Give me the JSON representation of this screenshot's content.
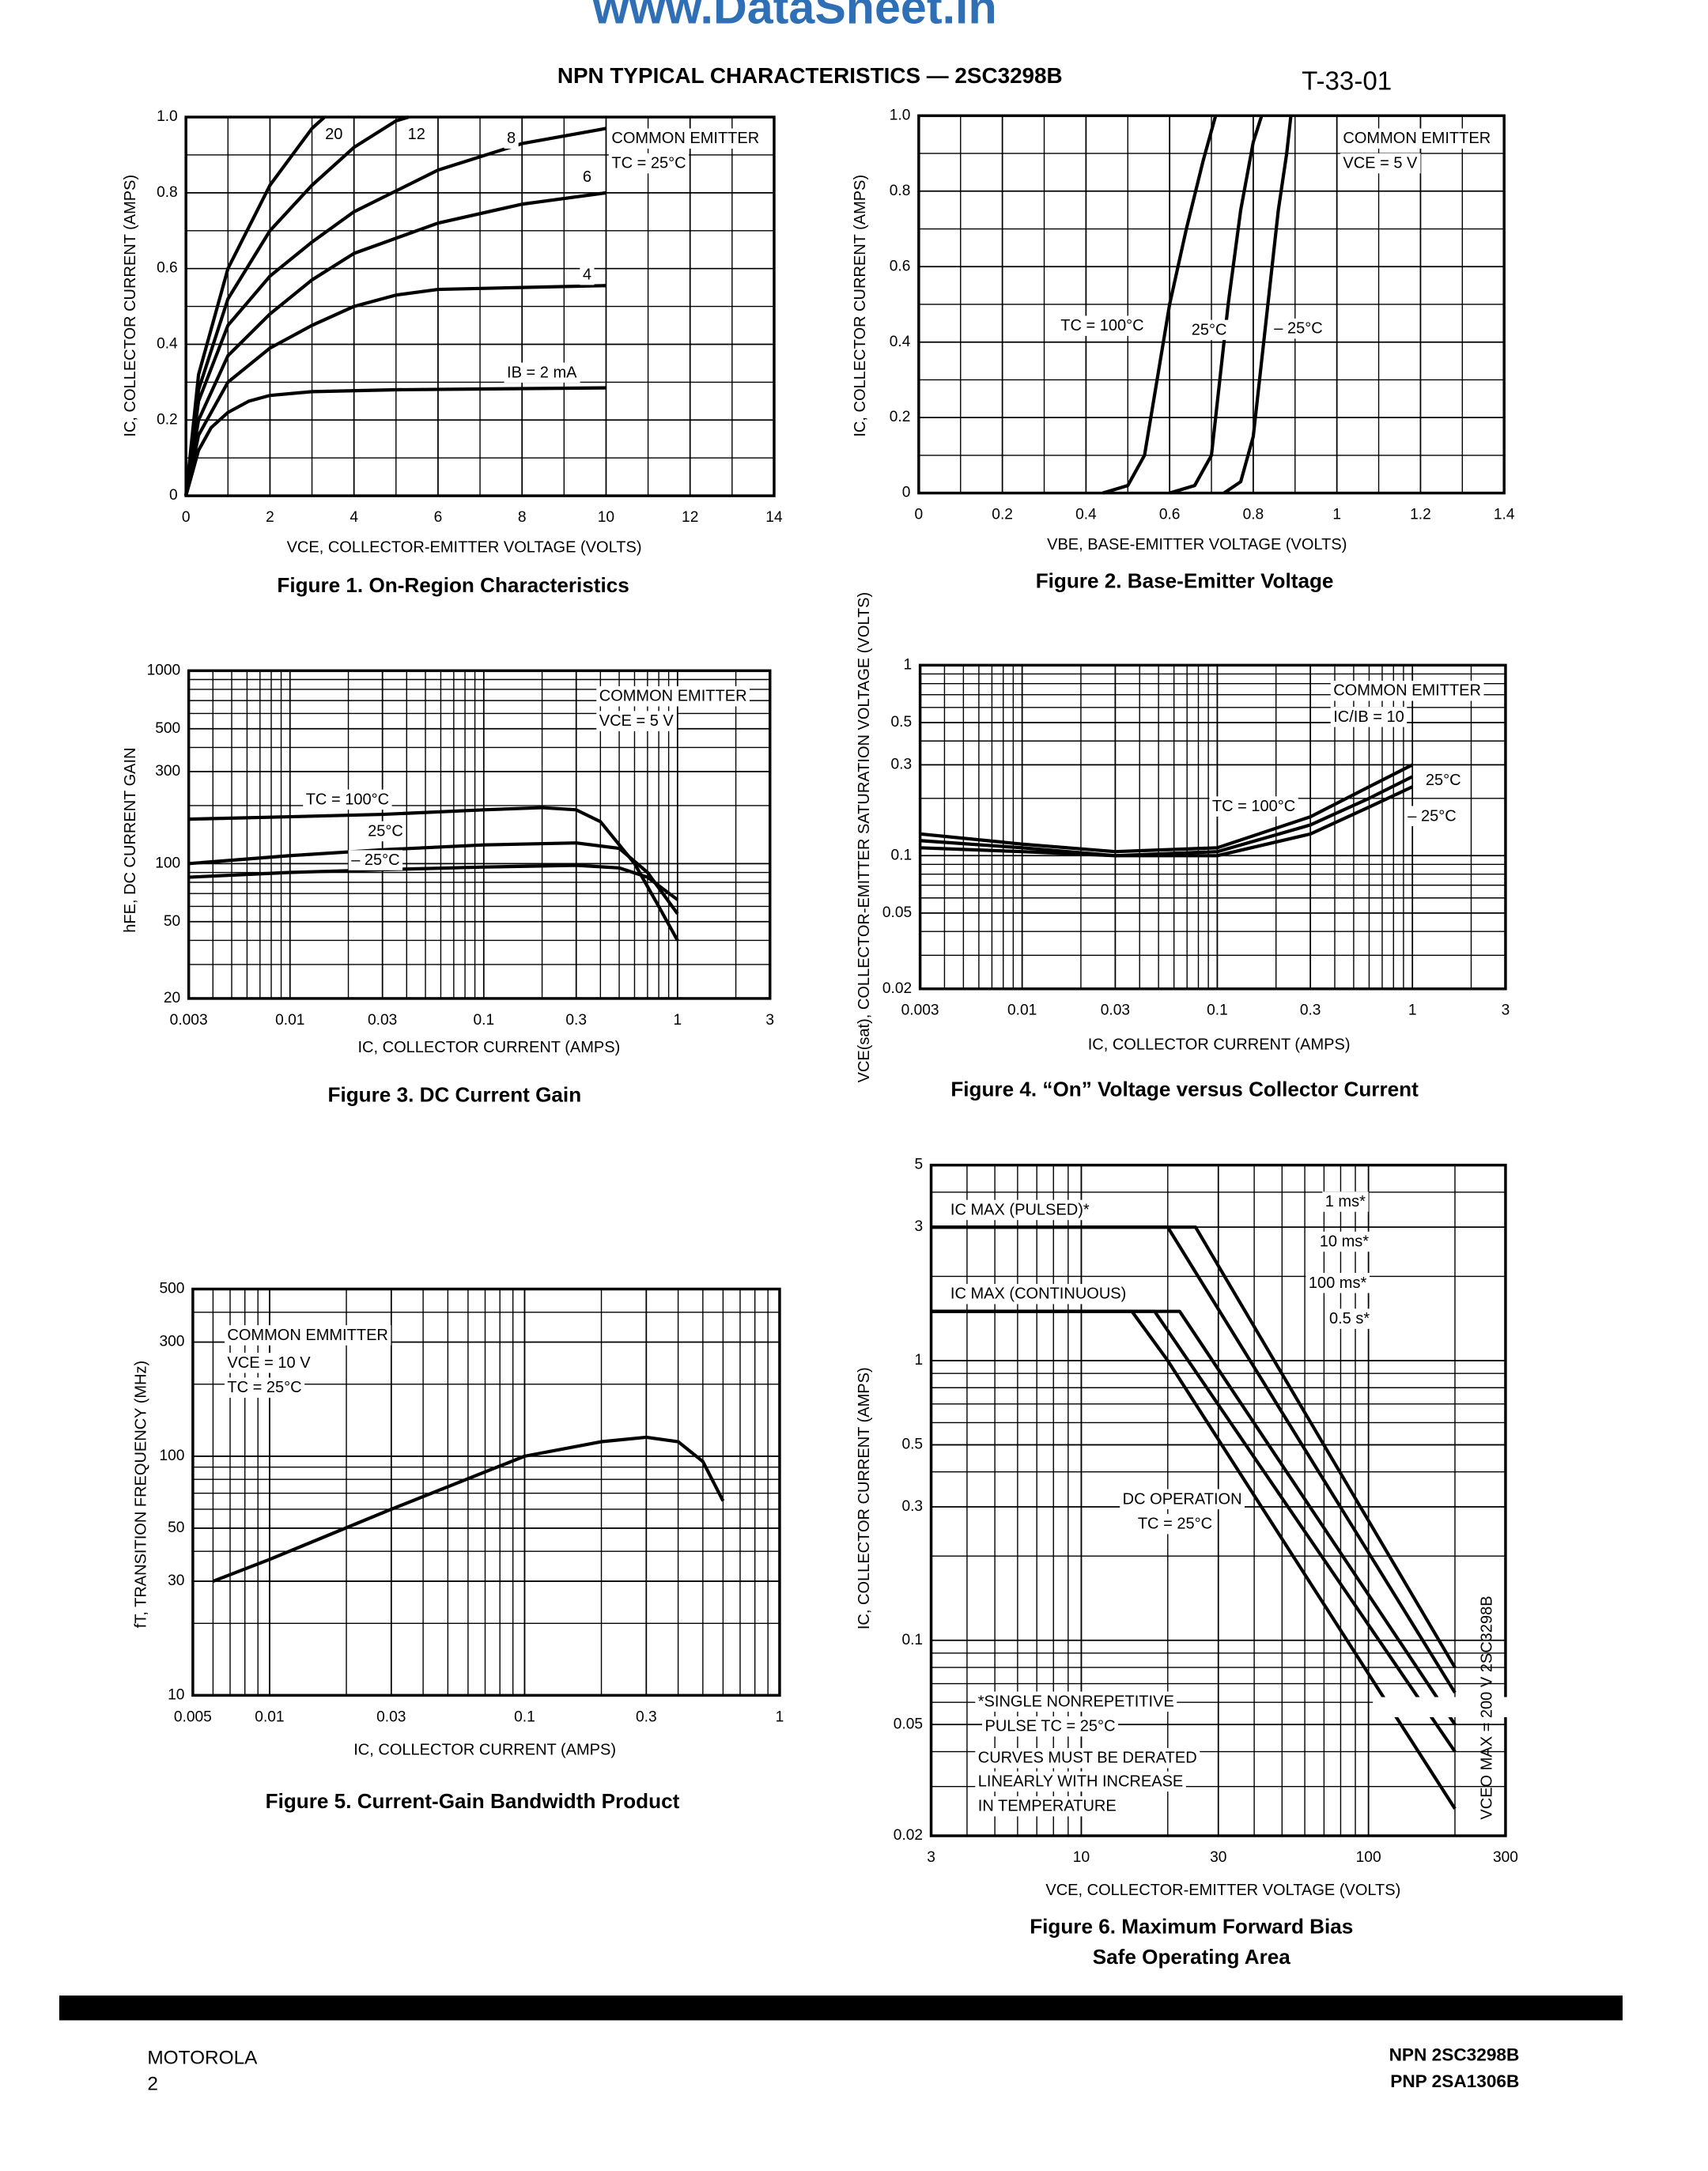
{
  "header": {
    "watermark": "www.DataSheet.in",
    "title": "NPN TYPICAL CHARACTERISTICS — 2SC3298B",
    "code": "T-33-01"
  },
  "footer": {
    "left": [
      "MOTOROLA",
      "2"
    ],
    "right": [
      "NPN 2SC3298B",
      "PNP 2SA1306B"
    ]
  },
  "chart_data": [
    {
      "type": "line",
      "caption": [
        "Figure 1. On-Region Characteristics"
      ],
      "x_label": "VCE, COLLECTOR-EMITTER VOLTAGE (VOLTS)",
      "y_label": "IC, COLLECTOR CURRENT (AMPS)",
      "xscale": "linear",
      "yscale": "linear",
      "xlim": [
        0,
        14
      ],
      "ylim": [
        0,
        1
      ],
      "xticks": [
        0,
        2,
        4,
        6,
        8,
        10,
        12,
        14
      ],
      "yticks": [
        0,
        0.2,
        0.4,
        0.6,
        0.8,
        {
          "value": 1,
          "label": "1.0"
        }
      ],
      "grid": true,
      "minor_grid": true,
      "color": "#000000",
      "annotations": [
        "COMMON EMITTER",
        "TC = 25°C"
      ],
      "series": [
        {
          "name": "20",
          "x": [
            0,
            0.3,
            1,
            2,
            3,
            3.3
          ],
          "values": [
            0,
            0.32,
            0.6,
            0.82,
            0.97,
            1.0
          ]
        },
        {
          "name": "12",
          "x": [
            0,
            0.3,
            1,
            2,
            3,
            4,
            5,
            5.3
          ],
          "values": [
            0,
            0.28,
            0.52,
            0.7,
            0.82,
            0.92,
            0.99,
            1.0
          ]
        },
        {
          "name": "8",
          "x": [
            0,
            0.3,
            1,
            2,
            3,
            4,
            6,
            8,
            10
          ],
          "values": [
            0,
            0.25,
            0.45,
            0.58,
            0.67,
            0.75,
            0.86,
            0.93,
            0.97
          ]
        },
        {
          "name": "6",
          "x": [
            0,
            0.3,
            1,
            2,
            3,
            4,
            6,
            8,
            10
          ],
          "values": [
            0,
            0.2,
            0.37,
            0.48,
            0.57,
            0.64,
            0.72,
            0.77,
            0.8
          ]
        },
        {
          "name": "4",
          "x": [
            0,
            0.3,
            1,
            2,
            3,
            4,
            5,
            6,
            8,
            10
          ],
          "values": [
            0,
            0.16,
            0.3,
            0.39,
            0.45,
            0.5,
            0.53,
            0.545,
            0.55,
            0.555
          ]
        },
        {
          "name": "IB = 2 mA",
          "x": [
            0,
            0.3,
            0.6,
            1,
            1.5,
            2,
            3,
            5,
            10
          ],
          "values": [
            0,
            0.12,
            0.18,
            0.22,
            0.25,
            0.265,
            0.275,
            0.28,
            0.285
          ]
        }
      ]
    },
    {
      "type": "line",
      "caption": [
        "Figure 2. Base-Emitter Voltage"
      ],
      "x_label": "VBE, BASE-EMITTER VOLTAGE (VOLTS)",
      "y_label": "IC, COLLECTOR CURRENT (AMPS)",
      "xscale": "linear",
      "yscale": "linear",
      "xlim": [
        0,
        1.4
      ],
      "ylim": [
        0,
        1
      ],
      "xticks": [
        0,
        0.2,
        0.4,
        0.6,
        0.8,
        1,
        1.2,
        1.4
      ],
      "yticks": [
        0,
        0.2,
        0.4,
        0.6,
        0.8,
        {
          "value": 1,
          "label": "1.0"
        }
      ],
      "grid": true,
      "minor_grid": true,
      "color": "#000000",
      "annotations": [
        "COMMON EMITTER",
        "VCE = 5 V"
      ],
      "series": [
        {
          "name": "TC = 100°C",
          "x": [
            0.44,
            0.5,
            0.54,
            0.57,
            0.6,
            0.64,
            0.68,
            0.71
          ],
          "values": [
            0,
            0.02,
            0.1,
            0.3,
            0.5,
            0.7,
            0.88,
            1.0
          ]
        },
        {
          "name": "25°C",
          "x": [
            0.6,
            0.66,
            0.7,
            0.72,
            0.74,
            0.77,
            0.8,
            0.82
          ],
          "values": [
            0,
            0.02,
            0.1,
            0.3,
            0.5,
            0.75,
            0.93,
            1.0
          ]
        },
        {
          "name": "– 25°C",
          "x": [
            0.73,
            0.77,
            0.8,
            0.82,
            0.84,
            0.86,
            0.88,
            0.89
          ],
          "values": [
            0,
            0.03,
            0.15,
            0.35,
            0.55,
            0.75,
            0.9,
            1.0
          ]
        }
      ]
    },
    {
      "type": "line",
      "caption": [
        "Figure 3. DC Current Gain"
      ],
      "x_label": "IC, COLLECTOR CURRENT (AMPS)",
      "y_label": "hFE, DC CURRENT GAIN",
      "xscale": "log",
      "yscale": "log",
      "xlim": [
        0.003,
        3
      ],
      "ylim": [
        20,
        1000
      ],
      "xticks": [
        0.003,
        0.01,
        0.03,
        0.1,
        0.3,
        1,
        3
      ],
      "yticks": [
        20,
        50,
        100,
        300,
        500,
        1000
      ],
      "grid": true,
      "minor_grid": true,
      "color": "#000000",
      "annotations": [
        "COMMON EMITTER",
        "VCE = 5 V"
      ],
      "series": [
        {
          "name": "TC = 100°C",
          "x": [
            0.003,
            0.01,
            0.03,
            0.1,
            0.2,
            0.3,
            0.4,
            0.6,
            0.8,
            1
          ],
          "values": [
            170,
            175,
            180,
            190,
            195,
            190,
            165,
            100,
            60,
            40
          ]
        },
        {
          "name": "25°C",
          "x": [
            0.003,
            0.01,
            0.03,
            0.1,
            0.3,
            0.5,
            0.7,
            1
          ],
          "values": [
            100,
            110,
            118,
            125,
            128,
            120,
            90,
            55
          ]
        },
        {
          "name": "– 25°C",
          "x": [
            0.003,
            0.01,
            0.03,
            0.1,
            0.3,
            0.5,
            0.7,
            1
          ],
          "values": [
            85,
            90,
            93,
            96,
            98,
            95,
            85,
            65
          ]
        }
      ]
    },
    {
      "type": "line",
      "caption": [
        "Figure 4. “On” Voltage versus Collector Current"
      ],
      "x_label": "IC, COLLECTOR CURRENT (AMPS)",
      "y_label": "VCE(sat), COLLECTOR-EMITTER SATURATION VOLTAGE (VOLTS)",
      "xscale": "log",
      "yscale": "log",
      "xlim": [
        0.003,
        3
      ],
      "ylim": [
        0.02,
        1
      ],
      "xticks": [
        0.003,
        0.01,
        0.03,
        0.1,
        0.3,
        1,
        3
      ],
      "yticks": [
        0.02,
        0.05,
        0.1,
        0.3,
        0.5,
        1
      ],
      "grid": true,
      "minor_grid": true,
      "color": "#000000",
      "annotations": [
        "COMMON EMITTER",
        "IC/IB = 10"
      ],
      "series": [
        {
          "name": "TC = 100°C",
          "x": [
            0.003,
            0.01,
            0.03,
            0.1,
            0.3,
            0.6,
            1
          ],
          "values": [
            0.13,
            0.115,
            0.105,
            0.11,
            0.16,
            0.23,
            0.3
          ]
        },
        {
          "name": "25°C",
          "x": [
            0.003,
            0.01,
            0.03,
            0.1,
            0.3,
            0.6,
            1
          ],
          "values": [
            0.12,
            0.11,
            0.1,
            0.105,
            0.145,
            0.2,
            0.26
          ]
        },
        {
          "name": "– 25°C",
          "x": [
            0.003,
            0.01,
            0.03,
            0.1,
            0.3,
            0.6,
            1
          ],
          "values": [
            0.11,
            0.105,
            0.1,
            0.1,
            0.13,
            0.18,
            0.23
          ]
        }
      ]
    },
    {
      "type": "line",
      "caption": [
        "Figure 5. Current-Gain Bandwidth Product"
      ],
      "x_label": "IC, COLLECTOR CURRENT (AMPS)",
      "y_label": "fT, TRANSITION FREQUENCY (MHz)",
      "xscale": "log",
      "yscale": "log",
      "xlim": [
        0.005,
        1
      ],
      "ylim": [
        10,
        500
      ],
      "xticks": [
        0.005,
        0.01,
        0.03,
        0.1,
        0.3,
        1
      ],
      "yticks": [
        10,
        30,
        50,
        100,
        300,
        500
      ],
      "grid": true,
      "minor_grid": true,
      "color": "#000000",
      "annotations": [
        "COMMON EMMITTER",
        "VCE = 10 V",
        "TC = 25°C"
      ],
      "x": [
        0.006,
        0.01,
        0.03,
        0.1,
        0.2,
        0.3,
        0.4,
        0.5,
        0.6
      ],
      "values": [
        30,
        37,
        60,
        100,
        115,
        120,
        115,
        95,
        65
      ]
    },
    {
      "type": "line",
      "caption": [
        "Figure 6. Maximum Forward Bias",
        "Safe Operating Area"
      ],
      "x_label": "VCE, COLLECTOR-EMITTER VOLTAGE (VOLTS)",
      "y_label": "IC, COLLECTOR CURRENT (AMPS)",
      "xscale": "log",
      "yscale": "log",
      "xlim": [
        3,
        300
      ],
      "ylim": [
        0.02,
        5
      ],
      "xticks": [
        3,
        10,
        30,
        100,
        300
      ],
      "yticks": [
        0.02,
        0.05,
        0.1,
        0.3,
        0.5,
        1,
        3,
        5
      ],
      "grid": true,
      "minor_grid": true,
      "color": "#000000",
      "annotations": [
        "IC MAX (PULSED)*",
        "IC MAX (CONTINUOUS)",
        "TC = 25°C",
        "*SINGLE NONREPETITIVE",
        "PULSE TC = 25°C",
        "CURVES MUST BE DERATED",
        "LINEARLY WITH INCREASE",
        "IN TEMPERATURE",
        "VCEO MAX = 200 V  2SC3298B"
      ],
      "series": [
        {
          "name": "1 ms*",
          "x": [
            3,
            25,
            200
          ],
          "values": [
            3,
            3,
            0.08
          ]
        },
        {
          "name": "10 ms*",
          "x": [
            3,
            20,
            200
          ],
          "values": [
            3,
            3,
            0.065
          ]
        },
        {
          "name": "100 ms*",
          "x": [
            3,
            22,
            200
          ],
          "values": [
            1.5,
            1.5,
            0.05
          ]
        },
        {
          "name": "0.5 s*",
          "x": [
            3,
            18,
            200
          ],
          "values": [
            1.5,
            1.5,
            0.04
          ]
        },
        {
          "name": "DC OPERATION",
          "x": [
            3,
            15,
            20,
            200
          ],
          "values": [
            1.5,
            1.5,
            1,
            0.025
          ]
        }
      ]
    }
  ]
}
